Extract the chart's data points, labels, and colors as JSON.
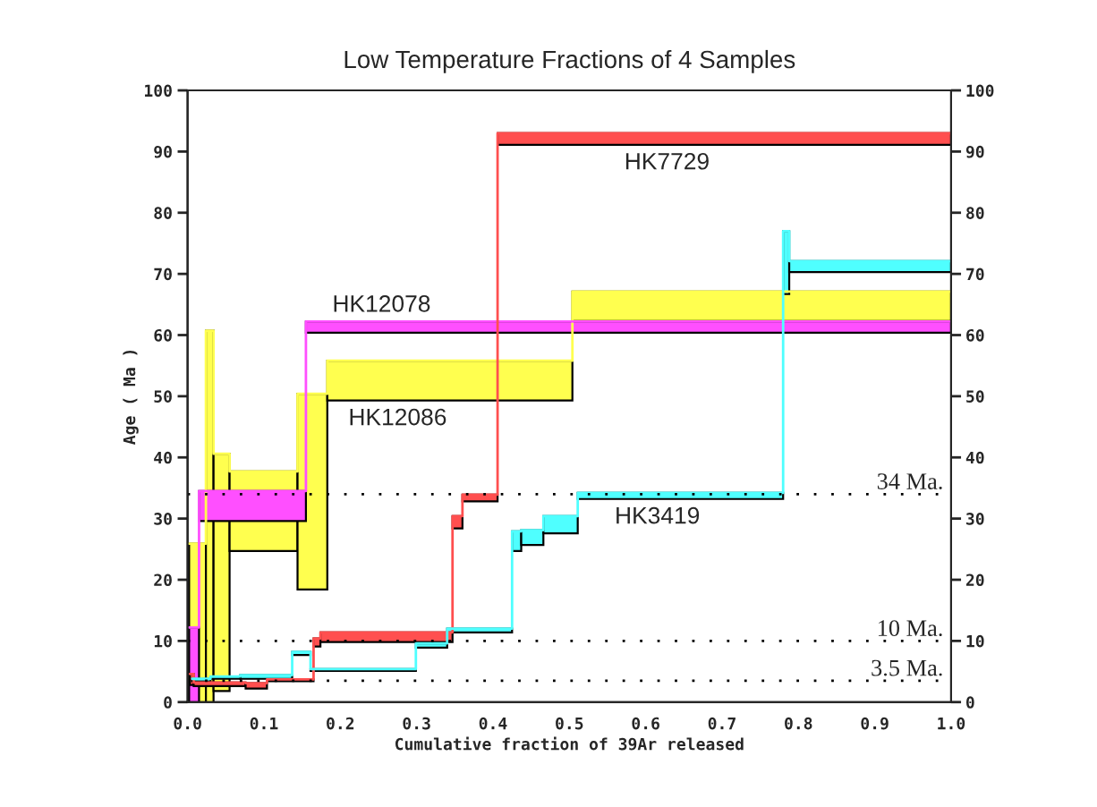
{
  "chart_data": {
    "type": "step",
    "title": "Low Temperature Fractions of 4 Samples",
    "xlabel": "Cumulative fraction of 39Ar released",
    "ylabel": "Age ( Ma )",
    "xlim": [
      0,
      1
    ],
    "xticks": [
      {
        "value": 0,
        "label": "0.0"
      },
      0.1,
      0.2,
      0.3,
      0.4,
      0.5,
      0.6,
      0.7,
      0.8,
      0.9,
      {
        "value": 1,
        "label": "1.0"
      }
    ],
    "ylim": [
      0,
      100
    ],
    "yticks": [
      0,
      10,
      20,
      30,
      40,
      50,
      60,
      70,
      80,
      90,
      100
    ],
    "y2lim": [
      0,
      100
    ],
    "y2ticks": [
      0,
      10,
      20,
      30,
      40,
      50,
      60,
      70,
      80,
      90,
      100
    ],
    "grid": false,
    "legend": false,
    "series": [
      {
        "name": "HK12086",
        "color": "#ffff4f",
        "x": [
          0.002,
          0.024,
          0.034,
          0.055,
          0.144,
          0.183,
          0.504,
          1.0
        ],
        "values": [
          25.9,
          60.7,
          40.6,
          37.7,
          50.4,
          55.8,
          67.1,
          67.1
        ],
        "lower": [
          0,
          0,
          1.8,
          24.7,
          18.4,
          49.3,
          62.3,
          62.3
        ],
        "upper": [
          25.9,
          60.7,
          40.6,
          37.7,
          50.4,
          55.8,
          67.1,
          67.1
        ]
      },
      {
        "name": "HK12078",
        "color": "#ff4fff",
        "x": [
          0.002,
          0.015,
          0.155,
          1.0
        ],
        "values": [
          12.2,
          34.5,
          62.2,
          62.2
        ],
        "lower": [
          0,
          29.6,
          60.4,
          60.4
        ],
        "upper": [
          12.2,
          34.5,
          62.2,
          62.2
        ]
      },
      {
        "name": "HK7729",
        "color": "#ff4f4f",
        "x": [
          0.003,
          0.008,
          0.076,
          0.104,
          0.165,
          0.174,
          0.347,
          0.36,
          0.406,
          1.0
        ],
        "values": [
          4.6,
          3.2,
          3.1,
          3.7,
          10.4,
          11.4,
          30.4,
          33.9,
          93.0,
          93.0
        ],
        "lower": [
          2.8,
          2.6,
          2.2,
          3.4,
          9.1,
          9.8,
          28.4,
          32.8,
          91.1,
          91.1
        ],
        "upper": [
          4.6,
          3.2,
          3.1,
          3.7,
          10.4,
          11.4,
          30.4,
          33.9,
          93.0,
          93.0
        ]
      },
      {
        "name": "HK3419",
        "color": "#4fffff",
        "x": [
          0.006,
          0.03,
          0.069,
          0.137,
          0.161,
          0.299,
          0.34,
          0.425,
          0.437,
          0.466,
          0.511,
          0.78,
          0.788,
          1.0
        ],
        "values": [
          3.8,
          4.2,
          4.4,
          8.2,
          5.4,
          9.6,
          12.0,
          27.9,
          28.1,
          30.4,
          34.2,
          77.0,
          72.1,
          72.1
        ],
        "lower": [
          3.4,
          3.8,
          3.8,
          7.7,
          5.1,
          8.9,
          11.4,
          24.7,
          25.7,
          27.6,
          33.2,
          66.7,
          70.3,
          70.3
        ],
        "upper": [
          3.8,
          4.2,
          4.4,
          8.2,
          5.4,
          9.6,
          12.0,
          27.9,
          28.1,
          30.4,
          34.2,
          77.0,
          72.1,
          72.1
        ]
      }
    ],
    "ref_lines": [
      {
        "axis": "y",
        "value": 34,
        "label": "34 Ma.",
        "line_style": "dotted"
      },
      {
        "axis": "y",
        "value": 10,
        "label": "10 Ma.",
        "line_style": "dotted"
      },
      {
        "axis": "y",
        "value": 3.5,
        "label": "3.5 Ma.",
        "line_style": "dotted"
      }
    ]
  }
}
